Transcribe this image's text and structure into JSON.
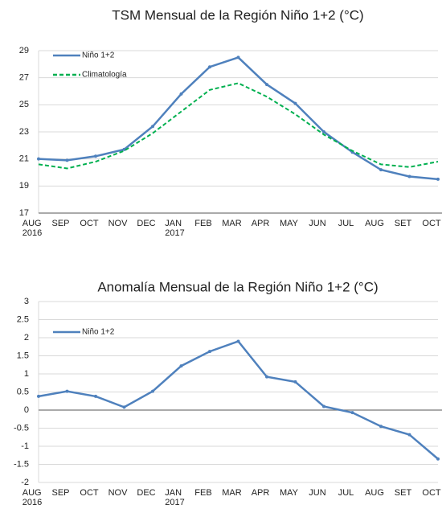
{
  "chart_data": [
    {
      "type": "line",
      "title": "TSM Mensual de la Región Niño 1+2 (°C)",
      "categories": [
        "AUG\n2016",
        "SEP",
        "OCT",
        "NOV",
        "DEC",
        "JAN\n2017",
        "FEB",
        "MAR",
        "APR",
        "MAY",
        "JUN",
        "JUL",
        "AUG",
        "SET",
        "OCT"
      ],
      "series": [
        {
          "name": "Niño 1+2",
          "color": "#4f81bd",
          "style": "solid",
          "values": [
            21.0,
            20.9,
            21.2,
            21.7,
            23.4,
            25.8,
            27.8,
            28.5,
            26.5,
            25.1,
            23.0,
            21.5,
            20.2,
            19.7,
            19.5
          ]
        },
        {
          "name": "Climatología",
          "color": "#00b050",
          "style": "dashed",
          "values": [
            20.6,
            20.3,
            20.8,
            21.6,
            22.9,
            24.5,
            26.1,
            26.6,
            25.6,
            24.3,
            22.8,
            21.6,
            20.6,
            20.4,
            20.8
          ]
        }
      ],
      "ylim": [
        17,
        29
      ],
      "yticks": [
        17,
        19,
        21,
        23,
        25,
        27,
        29
      ],
      "grid": true,
      "legend": "upper left"
    },
    {
      "type": "line",
      "title": "Anomalía Mensual de la Región Niño 1+2 (°C)",
      "categories": [
        "AUG\n2016",
        "SEP",
        "OCT",
        "NOV",
        "DEC",
        "JAN\n2017",
        "FEB",
        "MAR",
        "APR",
        "MAY",
        "JUN",
        "JUL",
        "AUG",
        "SET",
        "OCT"
      ],
      "series": [
        {
          "name": "Niño 1+2",
          "color": "#4f81bd",
          "style": "solid",
          "values": [
            0.38,
            0.52,
            0.38,
            0.08,
            0.52,
            1.22,
            1.62,
            1.9,
            0.92,
            0.78,
            0.1,
            -0.07,
            -0.45,
            -0.68,
            -1.35
          ]
        }
      ],
      "ylim": [
        -2,
        3
      ],
      "yticks": [
        -2,
        -1.5,
        -1,
        -0.5,
        0,
        0.5,
        1,
        1.5,
        2,
        2.5,
        3
      ],
      "grid": true,
      "legend": "upper left"
    }
  ]
}
